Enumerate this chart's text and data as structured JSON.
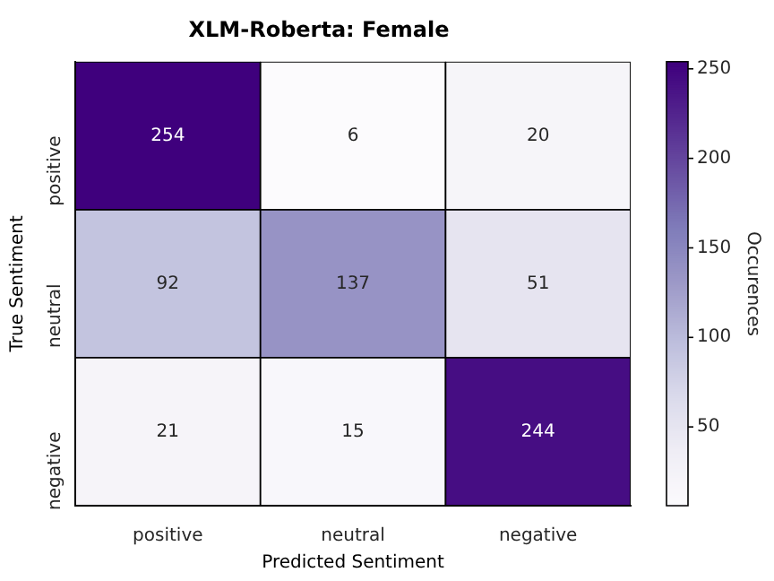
{
  "chart_data": {
    "type": "heatmap",
    "title": "XLM-Roberta: Female",
    "xlabel": "Predicted Sentiment",
    "ylabel": "True Sentiment",
    "clabel": "Occurences",
    "categories": [
      "positive",
      "neutral",
      "negative"
    ],
    "y_categories": [
      "positive",
      "neutral",
      "negative"
    ],
    "cells": [
      [
        254,
        6,
        20
      ],
      [
        92,
        137,
        51
      ],
      [
        21,
        15,
        244
      ]
    ],
    "clim": [
      6,
      254
    ],
    "cticks": [
      50,
      100,
      150,
      200,
      250
    ],
    "data_labels": true
  }
}
